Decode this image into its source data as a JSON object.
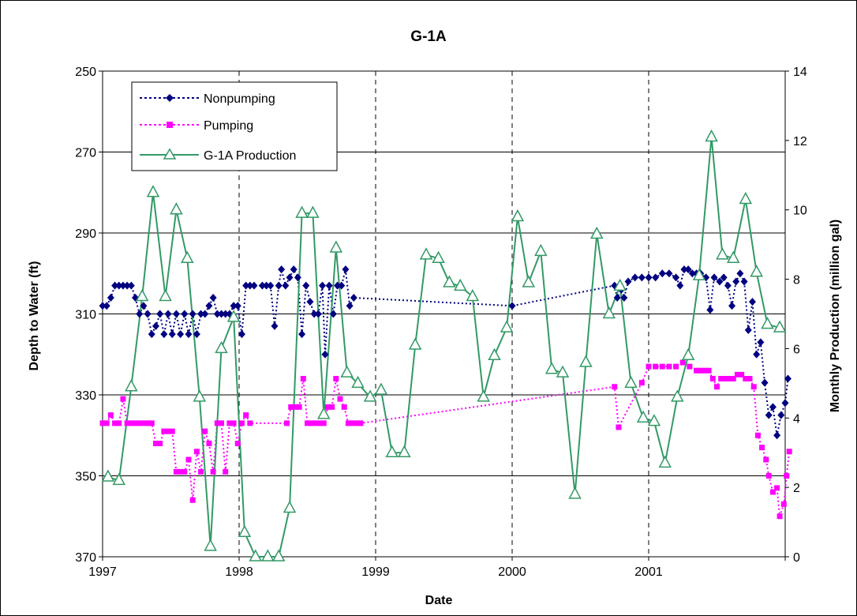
{
  "chart_data": {
    "type": "line",
    "title": "G-1A",
    "xlabel": "Date",
    "ylabel": "Depth to Water (ft)",
    "y2label": "Monthly Production (million gal)",
    "xlim": [
      1997,
      2002
    ],
    "xticks": [
      "1997",
      "1998",
      "1999",
      "2000",
      "2001"
    ],
    "ylim": [
      370,
      250
    ],
    "y_inverted": true,
    "yticks": [
      "250",
      "270",
      "290",
      "310",
      "330",
      "350",
      "370"
    ],
    "y2lim": [
      0,
      14
    ],
    "y2ticks": [
      "0",
      "2",
      "4",
      "6",
      "8",
      "10",
      "12",
      "14"
    ],
    "legend_position": "top-left",
    "grid": "horizontal solid, vertical dashed",
    "series": [
      {
        "name": "Nonpumping",
        "axis": "left",
        "color": "#000080",
        "marker": "diamond",
        "line": "dotted",
        "points": [
          [
            1997.0,
            308
          ],
          [
            1997.03,
            308
          ],
          [
            1997.06,
            306
          ],
          [
            1997.09,
            303
          ],
          [
            1997.12,
            303
          ],
          [
            1997.15,
            303
          ],
          [
            1997.18,
            303
          ],
          [
            1997.21,
            303
          ],
          [
            1997.24,
            306
          ],
          [
            1997.27,
            310
          ],
          [
            1997.3,
            308
          ],
          [
            1997.33,
            310
          ],
          [
            1997.36,
            315
          ],
          [
            1997.39,
            313
          ],
          [
            1997.42,
            310
          ],
          [
            1997.45,
            315
          ],
          [
            1997.48,
            310
          ],
          [
            1997.51,
            315
          ],
          [
            1997.54,
            310
          ],
          [
            1997.57,
            315
          ],
          [
            1997.6,
            310
          ],
          [
            1997.63,
            315
          ],
          [
            1997.66,
            310
          ],
          [
            1997.69,
            315
          ],
          [
            1997.72,
            310
          ],
          [
            1997.75,
            310
          ],
          [
            1997.78,
            308
          ],
          [
            1997.81,
            306
          ],
          [
            1997.84,
            310
          ],
          [
            1997.87,
            310
          ],
          [
            1997.9,
            310
          ],
          [
            1997.93,
            310
          ],
          [
            1997.96,
            308
          ],
          [
            1997.99,
            308
          ],
          [
            1998.02,
            315
          ],
          [
            1998.05,
            303
          ],
          [
            1998.08,
            303
          ],
          [
            1998.11,
            303
          ],
          [
            1998.17,
            303
          ],
          [
            1998.2,
            303
          ],
          [
            1998.23,
            303
          ],
          [
            1998.26,
            313
          ],
          [
            1998.29,
            303
          ],
          [
            1998.31,
            299
          ],
          [
            1998.34,
            303
          ],
          [
            1998.37,
            301
          ],
          [
            1998.4,
            299
          ],
          [
            1998.43,
            301
          ],
          [
            1998.46,
            315
          ],
          [
            1998.49,
            303
          ],
          [
            1998.52,
            307
          ],
          [
            1998.55,
            310
          ],
          [
            1998.58,
            310
          ],
          [
            1998.61,
            303
          ],
          [
            1998.63,
            320
          ],
          [
            1998.66,
            303
          ],
          [
            1998.69,
            310
          ],
          [
            1998.72,
            303
          ],
          [
            1998.75,
            303
          ],
          [
            1998.78,
            299
          ],
          [
            1998.81,
            308
          ],
          [
            1998.84,
            306
          ],
          [
            2000.0,
            308
          ],
          [
            2000.75,
            303
          ],
          [
            2000.77,
            306
          ],
          [
            2000.8,
            304
          ],
          [
            2000.82,
            306
          ],
          [
            2000.85,
            302
          ],
          [
            2000.9,
            301
          ],
          [
            2000.95,
            301
          ],
          [
            2001.0,
            301
          ],
          [
            2001.05,
            301
          ],
          [
            2001.1,
            300
          ],
          [
            2001.15,
            300
          ],
          [
            2001.2,
            301
          ],
          [
            2001.23,
            303
          ],
          [
            2001.26,
            299
          ],
          [
            2001.29,
            299
          ],
          [
            2001.32,
            300
          ],
          [
            2001.35,
            300
          ],
          [
            2001.38,
            300
          ],
          [
            2001.42,
            301
          ],
          [
            2001.45,
            309
          ],
          [
            2001.48,
            301
          ],
          [
            2001.52,
            302
          ],
          [
            2001.55,
            301
          ],
          [
            2001.58,
            303
          ],
          [
            2001.61,
            308
          ],
          [
            2001.64,
            302
          ],
          [
            2001.67,
            300
          ],
          [
            2001.7,
            302
          ],
          [
            2001.73,
            314
          ],
          [
            2001.76,
            307
          ],
          [
            2001.79,
            320
          ],
          [
            2001.82,
            317
          ],
          [
            2001.85,
            327
          ],
          [
            2001.88,
            335
          ],
          [
            2001.91,
            333
          ],
          [
            2001.94,
            340
          ],
          [
            2001.97,
            335
          ],
          [
            2002.0,
            332
          ],
          [
            2002.02,
            326
          ]
        ]
      },
      {
        "name": "Pumping",
        "axis": "left",
        "color": "#ff00ff",
        "marker": "square",
        "line": "dotted",
        "points": [
          [
            1997.0,
            337
          ],
          [
            1997.03,
            337
          ],
          [
            1997.06,
            335
          ],
          [
            1997.09,
            337
          ],
          [
            1997.12,
            337
          ],
          [
            1997.15,
            331
          ],
          [
            1997.18,
            337
          ],
          [
            1997.21,
            337
          ],
          [
            1997.24,
            337
          ],
          [
            1997.27,
            337
          ],
          [
            1997.3,
            337
          ],
          [
            1997.33,
            337
          ],
          [
            1997.36,
            337
          ],
          [
            1997.39,
            342
          ],
          [
            1997.42,
            342
          ],
          [
            1997.45,
            339
          ],
          [
            1997.48,
            339
          ],
          [
            1997.51,
            339
          ],
          [
            1997.54,
            349
          ],
          [
            1997.57,
            349
          ],
          [
            1997.6,
            349
          ],
          [
            1997.63,
            346
          ],
          [
            1997.66,
            356
          ],
          [
            1997.69,
            344
          ],
          [
            1997.72,
            349
          ],
          [
            1997.75,
            339
          ],
          [
            1997.78,
            342
          ],
          [
            1997.81,
            349
          ],
          [
            1997.84,
            337
          ],
          [
            1997.87,
            337
          ],
          [
            1997.9,
            349
          ],
          [
            1997.93,
            337
          ],
          [
            1997.96,
            337
          ],
          [
            1997.99,
            342
          ],
          [
            1998.02,
            337
          ],
          [
            1998.05,
            335
          ],
          [
            1998.08,
            337
          ],
          [
            1998.35,
            337
          ],
          [
            1998.38,
            333
          ],
          [
            1998.41,
            333
          ],
          [
            1998.44,
            333
          ],
          [
            1998.47,
            326
          ],
          [
            1998.5,
            337
          ],
          [
            1998.53,
            337
          ],
          [
            1998.56,
            337
          ],
          [
            1998.59,
            337
          ],
          [
            1998.62,
            337
          ],
          [
            1998.65,
            333
          ],
          [
            1998.68,
            333
          ],
          [
            1998.71,
            326
          ],
          [
            1998.74,
            331
          ],
          [
            1998.77,
            333
          ],
          [
            1998.8,
            337
          ],
          [
            1998.83,
            337
          ],
          [
            1998.86,
            337
          ],
          [
            1998.89,
            337
          ],
          [
            2000.75,
            328
          ],
          [
            2000.78,
            338
          ],
          [
            2000.95,
            327
          ],
          [
            2001.0,
            323
          ],
          [
            2001.05,
            323
          ],
          [
            2001.1,
            323
          ],
          [
            2001.15,
            323
          ],
          [
            2001.2,
            323
          ],
          [
            2001.25,
            322
          ],
          [
            2001.3,
            323
          ],
          [
            2001.35,
            324
          ],
          [
            2001.38,
            324
          ],
          [
            2001.41,
            324
          ],
          [
            2001.44,
            324
          ],
          [
            2001.47,
            326
          ],
          [
            2001.5,
            328
          ],
          [
            2001.53,
            326
          ],
          [
            2001.56,
            326
          ],
          [
            2001.59,
            326
          ],
          [
            2001.62,
            326
          ],
          [
            2001.65,
            325
          ],
          [
            2001.68,
            325
          ],
          [
            2001.71,
            326
          ],
          [
            2001.74,
            326
          ],
          [
            2001.77,
            328
          ],
          [
            2001.8,
            340
          ],
          [
            2001.83,
            343
          ],
          [
            2001.86,
            346
          ],
          [
            2001.88,
            350
          ],
          [
            2001.91,
            354
          ],
          [
            2001.94,
            353
          ],
          [
            2001.96,
            360
          ],
          [
            2001.99,
            357
          ],
          [
            2002.01,
            350
          ],
          [
            2002.03,
            344
          ]
        ]
      },
      {
        "name": "G-1A Production",
        "axis": "right",
        "color": "#339966",
        "marker": "triangle-open",
        "line": "solid",
        "points": [
          [
            1997.04,
            2.3
          ],
          [
            1997.12,
            2.2
          ],
          [
            1997.21,
            4.9
          ],
          [
            1997.29,
            7.5
          ],
          [
            1997.37,
            10.5
          ],
          [
            1997.46,
            7.5
          ],
          [
            1997.54,
            10.0
          ],
          [
            1997.62,
            8.6
          ],
          [
            1997.71,
            4.6
          ],
          [
            1997.79,
            0.3
          ],
          [
            1997.87,
            6.0
          ],
          [
            1997.96,
            6.9
          ],
          [
            1998.04,
            0.7
          ],
          [
            1998.12,
            0.0
          ],
          [
            1998.21,
            0.0
          ],
          [
            1998.29,
            0.0
          ],
          [
            1998.37,
            1.4
          ],
          [
            1998.46,
            9.9
          ],
          [
            1998.54,
            9.9
          ],
          [
            1998.62,
            4.1
          ],
          [
            1998.71,
            8.9
          ],
          [
            1998.79,
            5.3
          ],
          [
            1998.87,
            5.0
          ],
          [
            1998.96,
            4.6
          ],
          [
            1999.04,
            4.8
          ],
          [
            1999.12,
            3.0
          ],
          [
            1999.21,
            3.0
          ],
          [
            1999.29,
            6.1
          ],
          [
            1999.37,
            8.7
          ],
          [
            1999.46,
            8.6
          ],
          [
            1999.54,
            7.9
          ],
          [
            1999.62,
            7.8
          ],
          [
            1999.71,
            7.5
          ],
          [
            1999.79,
            4.6
          ],
          [
            1999.87,
            5.8
          ],
          [
            1999.96,
            6.6
          ],
          [
            2000.04,
            9.8
          ],
          [
            2000.12,
            7.9
          ],
          [
            2000.21,
            8.8
          ],
          [
            2000.29,
            5.4
          ],
          [
            2000.37,
            5.3
          ],
          [
            2000.46,
            1.8
          ],
          [
            2000.54,
            5.6
          ],
          [
            2000.62,
            9.3
          ],
          [
            2000.71,
            7.0
          ],
          [
            2000.79,
            7.8
          ],
          [
            2000.87,
            5.0
          ],
          [
            2000.96,
            4.0
          ],
          [
            2001.04,
            3.9
          ],
          [
            2001.12,
            2.7
          ],
          [
            2001.21,
            4.6
          ],
          [
            2001.29,
            5.8
          ],
          [
            2001.37,
            8.1
          ],
          [
            2001.46,
            12.1
          ],
          [
            2001.54,
            8.7
          ],
          [
            2001.62,
            8.6
          ],
          [
            2001.71,
            10.3
          ],
          [
            2001.79,
            8.2
          ],
          [
            2001.87,
            6.7
          ],
          [
            2001.96,
            6.6
          ]
        ]
      }
    ]
  }
}
